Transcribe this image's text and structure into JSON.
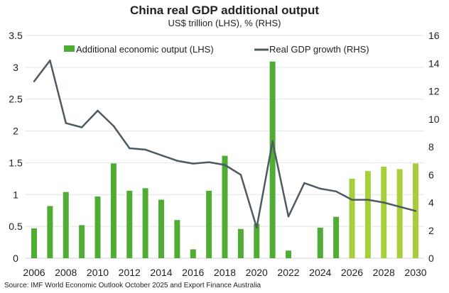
{
  "chart_data": {
    "type": "bar+line",
    "title": "China real GDP additional output",
    "subtitle": "US$ trillion (LHS), % (RHS)",
    "source": "Source: IMF World Economic Outlook October 2025 and Export Finance Australia",
    "x": [
      2006,
      2007,
      2008,
      2009,
      2010,
      2011,
      2012,
      2013,
      2014,
      2015,
      2016,
      2017,
      2018,
      2019,
      2020,
      2021,
      2022,
      2023,
      2024,
      2025,
      2026,
      2027,
      2028,
      2029,
      2030
    ],
    "x_tick_labels": [
      "2006",
      "2008",
      "2010",
      "2012",
      "2014",
      "2016",
      "2018",
      "2020",
      "2022",
      "2024",
      "2026",
      "2028",
      "2030"
    ],
    "y_left": {
      "range": [
        0,
        3.5
      ],
      "ticks": [
        "0",
        "0.5",
        "1",
        "1.5",
        "2",
        "2.5",
        "3",
        "3.5"
      ]
    },
    "y_right": {
      "range": [
        0,
        16
      ],
      "ticks": [
        "0",
        "2",
        "4",
        "6",
        "8",
        "10",
        "12",
        "14",
        "16"
      ]
    },
    "grid": true,
    "legend_placement": "top",
    "series": [
      {
        "name": "Additional economic output (LHS)",
        "type": "bar",
        "axis": "left",
        "color": "#4fac34",
        "forecast_color": "#a7cf3b",
        "forecast_from": 2026,
        "values": [
          0.47,
          0.82,
          1.04,
          0.52,
          0.97,
          1.49,
          1.06,
          1.1,
          0.92,
          0.6,
          0.14,
          1.06,
          1.61,
          0.46,
          0.54,
          3.09,
          0.12,
          0,
          0.48,
          0.65,
          1.25,
          1.37,
          1.44,
          1.4,
          1.49
        ]
      },
      {
        "name": "Real GDP growth (RHS)",
        "type": "line",
        "axis": "right",
        "color": "#4d5a62",
        "values": [
          12.7,
          14.2,
          9.7,
          9.4,
          10.6,
          9.5,
          7.9,
          7.8,
          7.4,
          7.0,
          6.8,
          6.9,
          6.7,
          6.0,
          2.2,
          8.4,
          3.0,
          5.4,
          5.0,
          4.8,
          4.2,
          4.2,
          4.0,
          3.7,
          3.4
        ]
      }
    ]
  }
}
